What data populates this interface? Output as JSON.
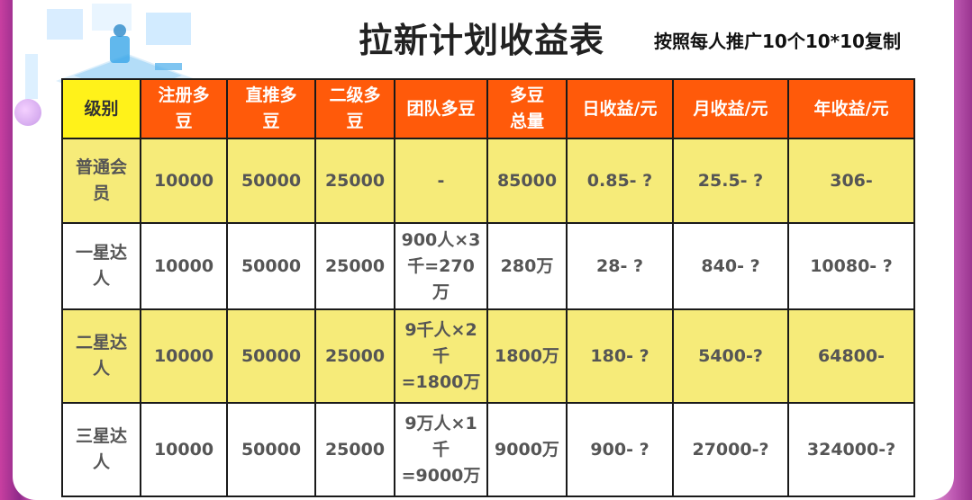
{
  "title": "拉新计划收益表",
  "subtitle": "按照每人推广10个10*10复制",
  "table": {
    "headers": [
      "级别",
      "注册多\n豆",
      "直推多\n豆",
      "二级多\n豆",
      "团队多豆",
      "多豆\n总量",
      "日收益/元",
      "月收益/元",
      "年收益/元"
    ],
    "rows": [
      {
        "style": "yellow",
        "cells": [
          "普通会\n员",
          "10000",
          "50000",
          "25000",
          "-",
          "85000",
          "0.85- ?",
          "25.5- ?",
          "306-"
        ]
      },
      {
        "style": "white",
        "cells": [
          "一星达\n人",
          "10000",
          "50000",
          "25000",
          "900人×3\n千=270\n万",
          "280万",
          "28- ?",
          "840- ?",
          "10080- ?"
        ]
      },
      {
        "style": "yellow",
        "cells": [
          "二星达\n人",
          "10000",
          "50000",
          "25000",
          "9千人×2\n千\n=1800万",
          "1800万",
          "180- ?",
          "5400-?",
          "64800-"
        ]
      },
      {
        "style": "white",
        "cells": [
          "三星达\n人",
          "10000",
          "50000",
          "25000",
          "9万人×1\n千\n=9000万",
          "9000万",
          "900- ?",
          "27000-?",
          "324000-?"
        ]
      }
    ]
  },
  "colors": {
    "header": "#ff5a0a",
    "level_header": "#fff21a",
    "row_yellow": "#f6eb79"
  },
  "decoration": {
    "illustration": "isometric-office-illustration"
  }
}
